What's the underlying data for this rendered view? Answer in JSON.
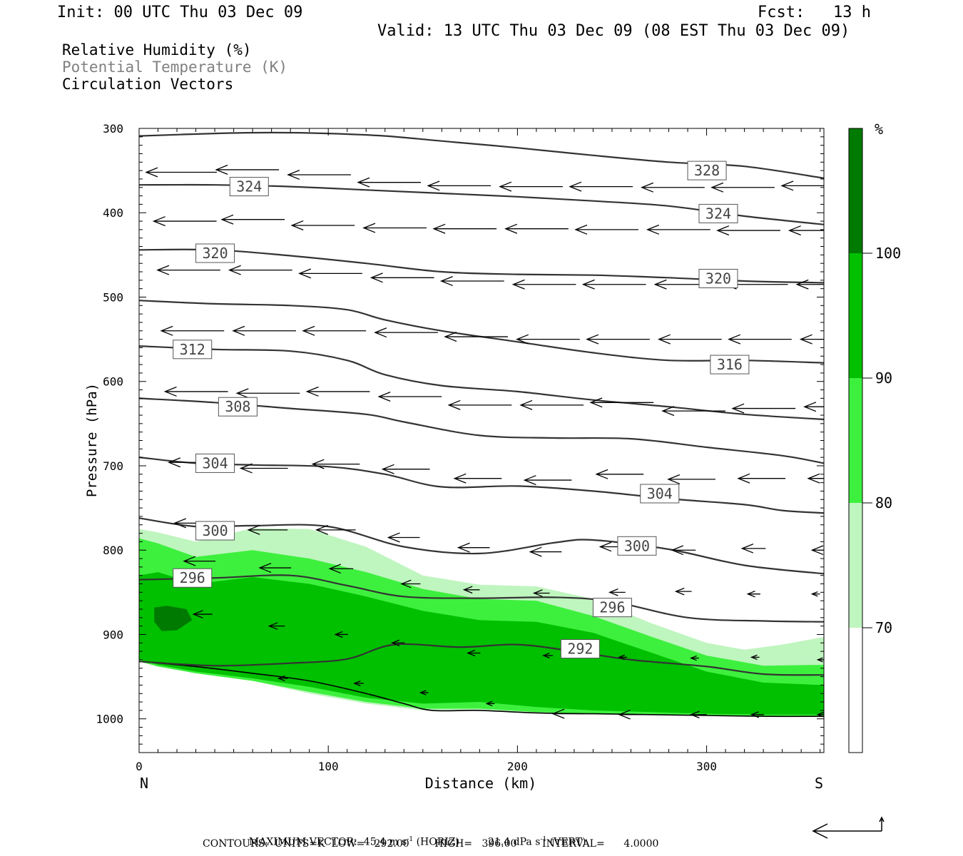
{
  "header": {
    "init": "Init: 00 UTC Thu 03 Dec 09",
    "fcst": "Fcst:   13 h",
    "valid": "Valid: 13 UTC Thu 03 Dec 09 (08 EST Thu 03 Dec 09)"
  },
  "legend": {
    "rh": "Relative Humidity (%)",
    "theta": "Potential Temperature (K)",
    "vectors": "Circulation Vectors"
  },
  "colorbar": {
    "unit": "%",
    "levels": [
      "70",
      "80",
      "90",
      "100"
    ],
    "colors": [
      "#ffffff",
      "#bff5bf",
      "#3ef03e",
      "#00c000",
      "#007a00"
    ]
  },
  "footer": {
    "max_vector": "MAXIMUM VECTOR:  45.4 m s",
    "horiz": "(HORIZ)",
    "vert_val": "21.4 dPa s",
    "vert": "(VERT)",
    "exp": "-1",
    "contours": "CONTOURS:  UNITS=K  LOW=   292.00        HIGH=   396.00        INTERVAL=      4.0000"
  },
  "chart_data": {
    "type": "cross-section",
    "xlabel": "Distance (km)",
    "ylabel": "Pressure (hPa)",
    "xlim": [
      0,
      362
    ],
    "ylim": [
      1040,
      300
    ],
    "x_ticks": [
      "0",
      "100",
      "200",
      "300"
    ],
    "x_tick_values": [
      0,
      100,
      200,
      300
    ],
    "y_ticks": [
      "300",
      "400",
      "500",
      "600",
      "700",
      "800",
      "900",
      "1000"
    ],
    "y_tick_values": [
      300,
      400,
      500,
      600,
      700,
      800,
      900,
      1000
    ],
    "left_end_label": "N",
    "right_end_label": "S",
    "theta_contours": [
      {
        "x": [
          0,
          40,
          70,
          100,
          130,
          160,
          200,
          240,
          280,
          320,
          362
        ],
        "p": [
          309,
          306,
          305,
          306,
          309,
          315,
          323,
          332,
          340,
          345,
          359
        ]
      },
      {
        "x": [
          0,
          40,
          80,
          120,
          160,
          200,
          240,
          280,
          320,
          362
        ],
        "p": [
          367,
          367,
          369,
          373,
          377,
          381,
          386,
          392,
          404,
          414
        ]
      },
      {
        "x": [
          0,
          40,
          80,
          120,
          160,
          200,
          240,
          280,
          320,
          362
        ],
        "p": [
          444,
          444,
          451,
          460,
          470,
          473,
          474,
          477,
          481,
          483
        ]
      },
      {
        "x": [
          0,
          40,
          80,
          110,
          130,
          160,
          200,
          240,
          280,
          320,
          362
        ],
        "p": [
          504,
          508,
          510,
          515,
          527,
          540,
          553,
          566,
          575,
          575,
          578
        ]
      },
      {
        "x": [
          0,
          40,
          80,
          110,
          130,
          160,
          200,
          240,
          280,
          320,
          362
        ],
        "p": [
          558,
          562,
          564,
          575,
          592,
          605,
          612,
          622,
          630,
          639,
          645
        ]
      },
      {
        "x": [
          0,
          40,
          80,
          120,
          140,
          180,
          220,
          260,
          300,
          340,
          362
        ],
        "p": [
          620,
          625,
          632,
          639,
          648,
          664,
          667,
          668,
          678,
          688,
          697
        ]
      },
      {
        "x": [
          0,
          30,
          60,
          100,
          130,
          160,
          200,
          240,
          280,
          320,
          340,
          362
        ],
        "p": [
          690,
          697,
          699,
          701,
          710,
          725,
          724,
          730,
          739,
          746,
          753,
          756
        ]
      },
      {
        "x": [
          0,
          30,
          60,
          100,
          140,
          180,
          220,
          240,
          280,
          320,
          362
        ],
        "p": [
          762,
          772,
          771,
          772,
          796,
          804,
          791,
          788,
          799,
          818,
          828
        ]
      },
      {
        "x": [
          0,
          40,
          80,
          110,
          140,
          180,
          220,
          250,
          290,
          330,
          362
        ],
        "p": [
          835,
          833,
          830,
          842,
          855,
          857,
          856,
          861,
          880,
          884,
          885
        ]
      },
      {
        "x": [
          0,
          40,
          80,
          110,
          135,
          170,
          200,
          230,
          260,
          300,
          330,
          362
        ],
        "p": [
          932,
          937,
          934,
          929,
          912,
          915,
          912,
          920,
          930,
          938,
          947,
          948
        ]
      }
    ],
    "theta_labels": [
      {
        "text": "328",
        "x": 290,
        "p": 350
      },
      {
        "text": "324",
        "x": 48,
        "p": 369
      },
      {
        "text": "324",
        "x": 296,
        "p": 401
      },
      {
        "text": "320",
        "x": 30,
        "p": 448
      },
      {
        "text": "320",
        "x": 296,
        "p": 478
      },
      {
        "text": "312",
        "x": 18,
        "p": 562
      },
      {
        "text": "316",
        "x": 302,
        "p": 580
      },
      {
        "text": "308",
        "x": 42,
        "p": 630
      },
      {
        "text": "304",
        "x": 30,
        "p": 697
      },
      {
        "text": "304",
        "x": 265,
        "p": 733
      },
      {
        "text": "300",
        "x": 30,
        "p": 777
      },
      {
        "text": "300",
        "x": 253,
        "p": 795
      },
      {
        "text": "296",
        "x": 18,
        "p": 833
      },
      {
        "text": "296",
        "x": 240,
        "p": 868
      },
      {
        "text": "292",
        "x": 223,
        "p": 917
      }
    ],
    "terrain": {
      "x": [
        0,
        30,
        60,
        90,
        120,
        140,
        155,
        180,
        210,
        240,
        270,
        300,
        330,
        362
      ],
      "p": [
        932,
        938,
        946,
        955,
        970,
        982,
        990,
        990,
        993,
        994,
        995,
        996,
        997,
        997
      ]
    },
    "rh_fields": [
      {
        "level": "70",
        "color": "#bff5bf",
        "x": [
          0,
          10,
          30,
          60,
          90,
          120,
          150,
          180,
          210,
          240,
          270,
          300,
          320,
          340,
          362
        ],
        "p_top": [
          775,
          779,
          790,
          774,
          775,
          796,
          830,
          841,
          843,
          858,
          886,
          910,
          918,
          912,
          903
        ],
        "p_bottom": [
          932,
          938,
          946,
          955,
          970,
          982,
          990,
          990,
          993,
          994,
          995,
          996,
          997,
          997,
          997
        ]
      },
      {
        "level": "80",
        "color": "#3ef03e",
        "x": [
          0,
          10,
          30,
          60,
          90,
          120,
          150,
          180,
          210,
          240,
          270,
          300,
          330,
          362
        ],
        "p_top": [
          786,
          792,
          808,
          800,
          810,
          826,
          846,
          858,
          860,
          878,
          902,
          925,
          937,
          936
        ],
        "p_bottom": [
          932,
          938,
          946,
          955,
          968,
          980,
          988,
          988,
          992,
          994,
          995,
          996,
          997,
          997
        ]
      },
      {
        "level": "90",
        "color": "#00c000",
        "x": [
          0,
          10,
          30,
          60,
          90,
          120,
          150,
          180,
          210,
          240,
          270,
          300,
          330,
          362
        ],
        "p_top": [
          830,
          826,
          840,
          832,
          840,
          855,
          872,
          883,
          885,
          898,
          921,
          944,
          957,
          960
        ],
        "p_bottom": [
          930,
          936,
          944,
          952,
          962,
          975,
          982,
          980,
          986,
          990,
          992,
          994,
          995,
          995
        ]
      },
      {
        "level": "100",
        "color": "#007a00",
        "x": [
          8,
          15,
          25,
          28,
          20,
          12,
          8
        ],
        "p_top": [
          868,
          866,
          870,
          883,
          895,
          896,
          885
        ],
        "p_bottom": []
      }
    ],
    "vectors": [
      {
        "x": [
          0,
          37,
          75,
          112,
          149,
          187,
          224,
          262,
          299,
          336
        ],
        "p": [
          352,
          349,
          355,
          364,
          368,
          369,
          369,
          370,
          370,
          368
        ],
        "u": [
          -45,
          -40,
          -40,
          -40,
          -40,
          -40,
          -40,
          -40,
          -40,
          -40
        ]
      },
      {
        "x": [
          4,
          40,
          77,
          115,
          152,
          190,
          227,
          265,
          302,
          340
        ],
        "p": [
          410,
          408,
          415,
          418,
          419,
          419,
          420,
          420,
          421,
          421
        ],
        "u": [
          -40,
          -40,
          -40,
          -40,
          -40,
          -40,
          -40,
          -40,
          -40,
          -40
        ]
      },
      {
        "x": [
          6,
          44,
          81,
          119,
          156,
          194,
          231,
          269,
          306,
          344
        ],
        "p": [
          468,
          468,
          472,
          477,
          481,
          485,
          485,
          485,
          485,
          485
        ],
        "u": [
          -40,
          -40,
          -40,
          -40,
          -40,
          -40,
          -40,
          -40,
          -40,
          -40
        ]
      },
      {
        "x": [
          8,
          46,
          83,
          121,
          158,
          196,
          233,
          271,
          308,
          346
        ],
        "p": [
          540,
          540,
          540,
          542,
          547,
          550,
          550,
          550,
          550,
          550
        ],
        "u": [
          -40,
          -40,
          -40,
          -40,
          -40,
          -40,
          -40,
          -40,
          -40,
          -40
        ]
      },
      {
        "x": [
          10,
          48,
          85,
          123,
          160,
          198,
          235,
          273,
          310,
          348
        ],
        "p": [
          612,
          614,
          612,
          618,
          628,
          628,
          625,
          635,
          632,
          630
        ],
        "u": [
          -40,
          -40,
          -40,
          -40,
          -40,
          -40,
          -40,
          -40,
          -40,
          -40
        ]
      },
      {
        "x": [
          12,
          50,
          88,
          125,
          163,
          200,
          238,
          276,
          313,
          350
        ],
        "p": [
          696,
          703,
          698,
          704,
          715,
          717,
          710,
          716,
          715,
          715
        ],
        "u": [
          -30,
          -30,
          -30,
          -30,
          -30,
          -30,
          -30,
          -30,
          -30,
          -30
        ]
      },
      {
        "x": [
          15,
          54,
          90,
          128,
          165,
          203,
          240,
          278,
          315,
          352
        ],
        "p": [
          768,
          776,
          776,
          785,
          797,
          802,
          796,
          800,
          798,
          800
        ],
        "u": [
          -25,
          -25,
          -25,
          -20,
          -20,
          -20,
          -15,
          -15,
          -15,
          -15
        ]
      },
      {
        "x": [
          20,
          60,
          97,
          135,
          168,
          205,
          245,
          280,
          318,
          352
        ],
        "p": [
          813,
          821,
          822,
          840,
          847,
          851,
          850,
          849,
          852,
          852
        ],
        "u": [
          -20,
          -20,
          -15,
          -12,
          -10,
          -10,
          -10,
          -10,
          -8,
          -5
        ]
      },
      {
        "x": [
          25,
          65,
          100,
          130,
          170,
          210,
          250,
          288,
          320,
          355
        ],
        "p": [
          876,
          890,
          900,
          910,
          922,
          925,
          927,
          928,
          927,
          930
        ],
        "u": [
          -12,
          -10,
          -8,
          -8,
          -8,
          -6,
          -5,
          -5,
          -5,
          -4
        ]
      },
      {
        "x": [
          70,
          110,
          145,
          180,
          215,
          250,
          288,
          320,
          355
        ],
        "p": [
          952,
          958,
          969,
          982,
          994,
          995,
          995,
          995,
          995
        ],
        "u": [
          -6,
          -6,
          -5,
          -5,
          -20,
          -15,
          -10,
          -8,
          -5
        ]
      }
    ]
  }
}
